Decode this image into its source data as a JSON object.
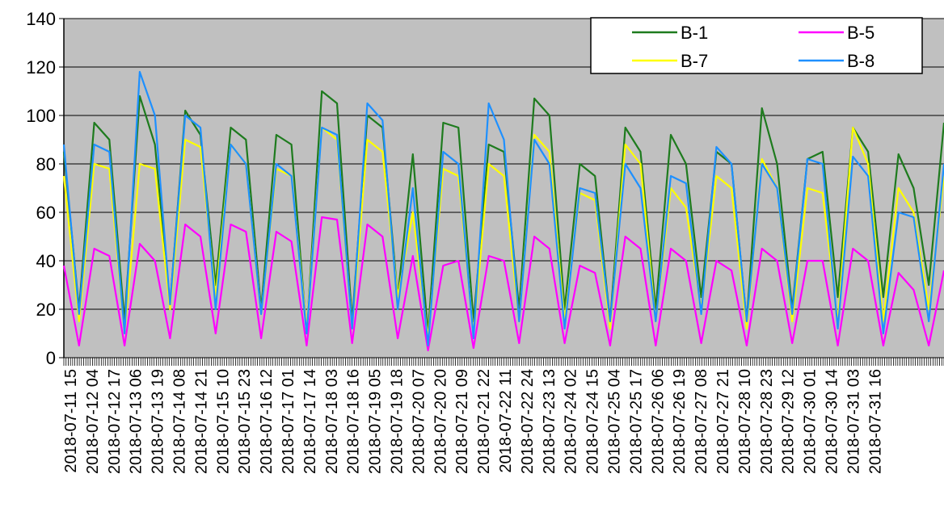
{
  "chart_data": {
    "type": "line",
    "title": "",
    "xlabel": "",
    "ylabel": "",
    "ylim": [
      0,
      140
    ],
    "y_ticks": [
      0,
      20,
      40,
      60,
      80,
      100,
      120,
      140
    ],
    "grid": "horizontal",
    "legend_position": "top-right",
    "plot_background": "#c0c0c0",
    "x_tick_labels": [
      "2018-07-11 15",
      "2018-07-12 04",
      "2018-07-12 17",
      "2018-07-13 06",
      "2018-07-13 19",
      "2018-07-14 08",
      "2018-07-14 21",
      "2018-07-15 10",
      "2018-07-15 23",
      "2018-07-16 12",
      "2018-07-17 01",
      "2018-07-17 14",
      "2018-07-18 03",
      "2018-07-18 16",
      "2018-07-19 05",
      "2018-07-19 18",
      "2018-07-20 07",
      "2018-07-20 20",
      "2018-07-21 09",
      "2018-07-21 22",
      "2018-07-22 11",
      "2018-07-22 24",
      "2018-07-23 13",
      "2018-07-24 02",
      "2018-07-24 15",
      "2018-07-25 04",
      "2018-07-25 17",
      "2018-07-26 06",
      "2018-07-26 19",
      "2018-07-27 08",
      "2018-07-27 21",
      "2018-07-28 10",
      "2018-07-28 23",
      "2018-07-29 12",
      "2018-07-30 01",
      "2018-07-30 14",
      "2018-07-31 03",
      "2018-07-31 16"
    ],
    "series": [
      {
        "name": "B-1",
        "color": "#1e7b1e",
        "values": [
          85,
          20,
          97,
          90,
          15,
          108,
          88,
          22,
          102,
          92,
          30,
          95,
          90,
          20,
          92,
          88,
          10,
          110,
          105,
          15,
          100,
          95,
          25,
          84,
          10,
          97,
          95,
          15,
          88,
          85,
          20,
          107,
          100,
          20,
          80,
          75,
          15,
          95,
          85,
          20,
          92,
          80,
          25,
          85,
          80,
          15,
          103,
          80,
          20,
          82,
          85,
          25,
          95,
          85,
          25,
          84,
          70,
          30,
          97
        ]
      },
      {
        "name": "B-5",
        "color": "#ff00ff",
        "values": [
          38,
          5,
          45,
          42,
          5,
          47,
          40,
          8,
          55,
          50,
          10,
          55,
          52,
          8,
          52,
          48,
          5,
          58,
          57,
          6,
          55,
          50,
          8,
          42,
          3,
          38,
          40,
          4,
          42,
          40,
          6,
          50,
          45,
          6,
          38,
          35,
          5,
          50,
          45,
          5,
          45,
          40,
          6,
          40,
          36,
          5,
          45,
          40,
          6,
          40,
          40,
          5,
          45,
          40,
          5,
          35,
          28,
          5,
          36
        ]
      },
      {
        "name": "B-7",
        "color": "#ffff00",
        "values": [
          75,
          15,
          80,
          78,
          10,
          80,
          78,
          20,
          90,
          87,
          25,
          88,
          80,
          18,
          78,
          75,
          12,
          95,
          90,
          12,
          90,
          85,
          25,
          60,
          8,
          78,
          75,
          10,
          80,
          75,
          15,
          92,
          85,
          15,
          68,
          65,
          12,
          88,
          80,
          15,
          70,
          62,
          20,
          75,
          70,
          12,
          82,
          70,
          15,
          70,
          68,
          15,
          95,
          80,
          15,
          70,
          60,
          20,
          75
        ]
      },
      {
        "name": "B-8",
        "color": "#1e90ff",
        "values": [
          88,
          18,
          88,
          85,
          10,
          118,
          100,
          22,
          100,
          95,
          20,
          88,
          80,
          18,
          80,
          75,
          10,
          95,
          92,
          12,
          105,
          98,
          20,
          70,
          5,
          85,
          80,
          8,
          105,
          90,
          15,
          90,
          80,
          12,
          70,
          68,
          15,
          80,
          70,
          15,
          75,
          72,
          18,
          87,
          80,
          15,
          80,
          70,
          18,
          82,
          80,
          12,
          83,
          75,
          10,
          60,
          58,
          15,
          80
        ]
      }
    ]
  }
}
